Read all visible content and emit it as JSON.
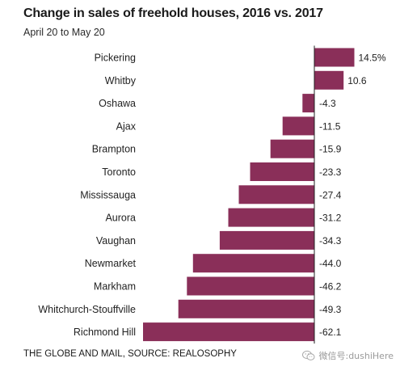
{
  "title": "Change in sales of freehold houses, 2016 vs. 2017",
  "subtitle": "April 20 to May 20",
  "source": "THE GLOBE AND MAIL, SOURCE: REALOSOPHY",
  "watermark": "微信号:dushiHere",
  "colors": {
    "bar": "#8a2f59",
    "axis": "#222222",
    "text": "#222222"
  },
  "chart_data": {
    "type": "bar",
    "orientation": "horizontal",
    "title": "Change in sales of freehold houses, 2016 vs. 2017",
    "subtitle": "April 20 to May 20",
    "categories": [
      "Pickering",
      "Whitby",
      "Oshawa",
      "Ajax",
      "Brampton",
      "Toronto",
      "Mississauga",
      "Aurora",
      "Vaughan",
      "Newmarket",
      "Markham",
      "Whitchurch-Stouffville",
      "Richmond Hill"
    ],
    "values": [
      14.5,
      10.6,
      -4.3,
      -11.5,
      -15.9,
      -23.3,
      -27.4,
      -31.2,
      -34.3,
      -44.0,
      -46.2,
      -49.3,
      -62.1
    ],
    "value_labels": [
      "14.5%",
      "10.6",
      "-4.3",
      "-11.5",
      "-15.9",
      "-23.3",
      "-27.4",
      "-31.2",
      "-34.3",
      "-44.0",
      "-46.2",
      "-49.3",
      "-62.1"
    ],
    "xlim": [
      -62.1,
      14.5
    ],
    "grid": false,
    "legend": "none"
  }
}
